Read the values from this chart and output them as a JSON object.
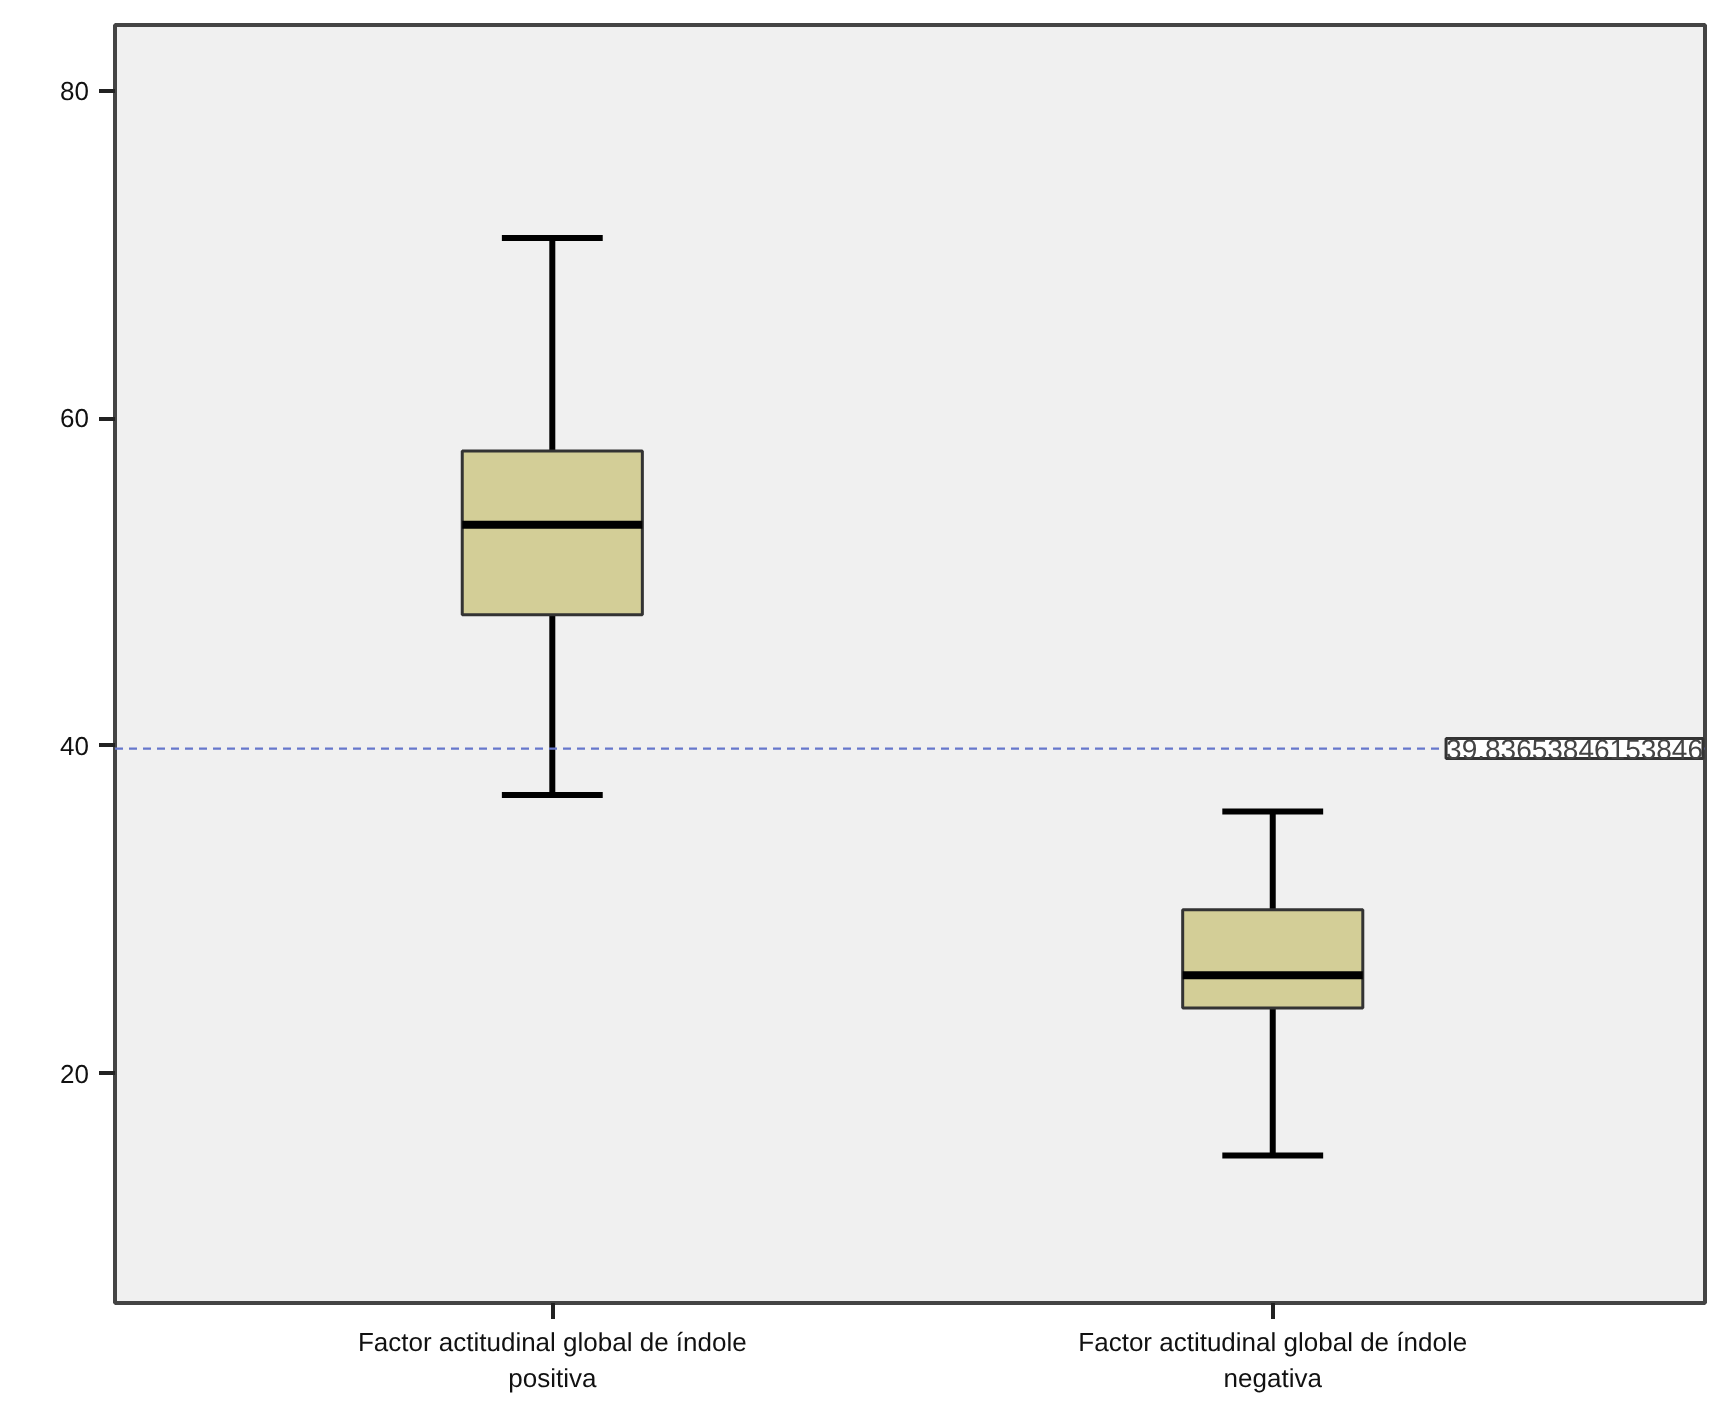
{
  "chart_data": {
    "type": "box",
    "categories": [
      "Factor actitudinal global de índole positiva",
      "Factor actitudinal global de índole negativa"
    ],
    "boxes": [
      {
        "low": 37,
        "q1": 48,
        "median": 53.5,
        "q3": 58,
        "high": 71
      },
      {
        "low": 15,
        "q1": 24,
        "median": 26,
        "q3": 30,
        "high": 36
      }
    ],
    "color": "#d3ce97",
    "ylim": [
      6,
      84
    ],
    "yticks": [
      20,
      40,
      60,
      80
    ],
    "grid": false,
    "ref_lines": [
      {
        "axis": "y",
        "value": 39.83653846153846,
        "label": "39.83653846153846",
        "color": "#6677cc",
        "line_style": "dashed"
      }
    ]
  }
}
